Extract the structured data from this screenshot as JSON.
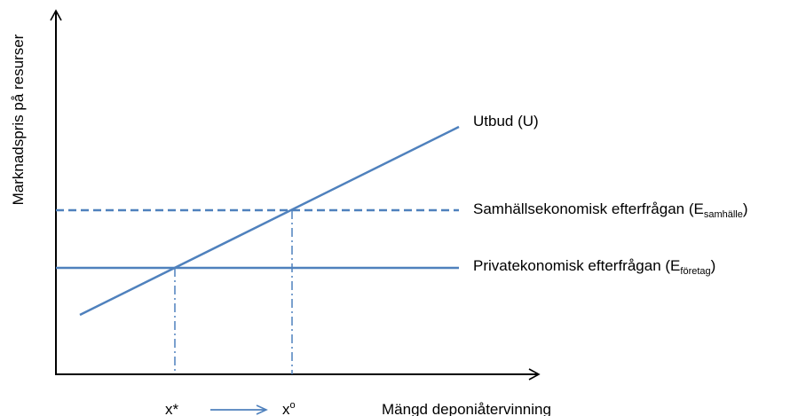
{
  "axes": {
    "y_label": "Marknadspris på resurser",
    "x_label": "Mängd deponiåtervinning"
  },
  "curves": [
    {
      "label": "Utbud (U)"
    },
    {
      "label": {
        "main": "Samhällsekonomisk  efterfrågan (E",
        "sub": "samhälle",
        "end": ")"
      }
    },
    {
      "label": {
        "main": "Privatekonomisk  efterfrågan (E",
        "sub": "företag",
        "end": ")"
      }
    }
  ],
  "x_marks": [
    {
      "text": "x*"
    },
    {
      "text": "x",
      "sup": "o"
    }
  ]
}
